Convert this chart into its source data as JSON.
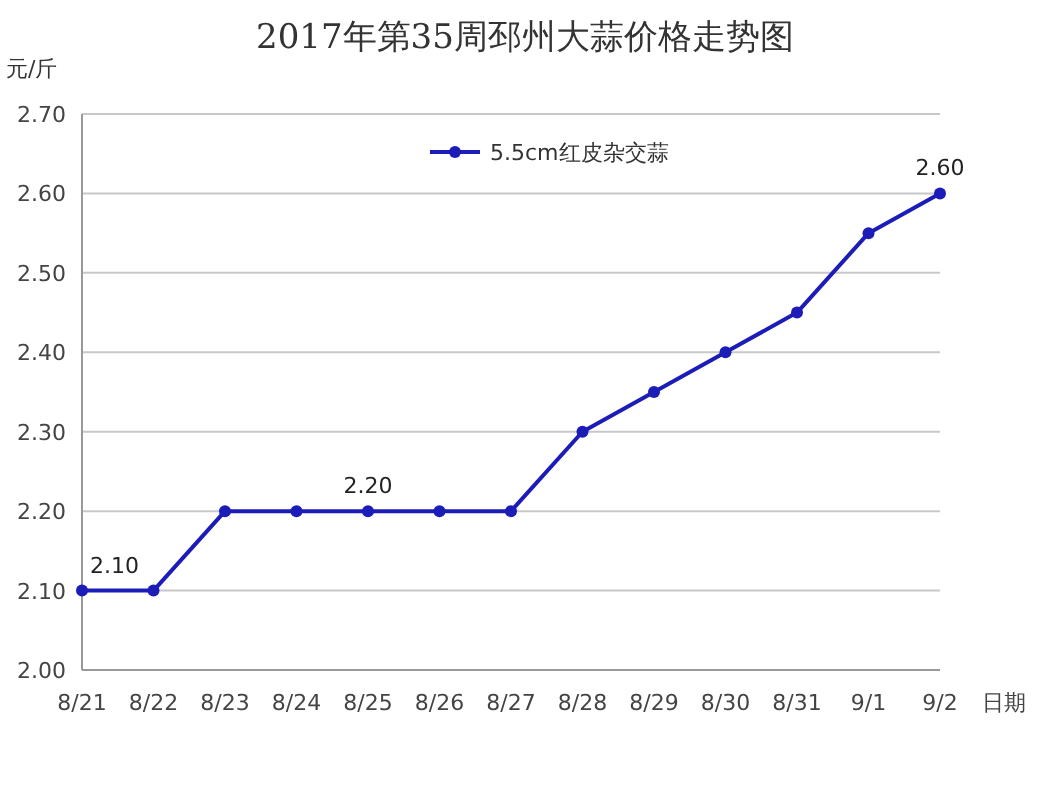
{
  "chart_data": {
    "type": "line",
    "title": "2017年第35周邳州大蒜价格走势图",
    "ylabel": "元/斤",
    "xlabel": "日期",
    "categories": [
      "8/21",
      "8/22",
      "8/23",
      "8/24",
      "8/25",
      "8/26",
      "8/27",
      "8/28",
      "8/29",
      "8/30",
      "8/31",
      "9/1",
      "9/2"
    ],
    "series": [
      {
        "name": "5.5cm红皮杂交蒜",
        "color": "#1c1cb8",
        "values": [
          2.1,
          2.1,
          2.2,
          2.2,
          2.2,
          2.2,
          2.2,
          2.3,
          2.35,
          2.4,
          2.45,
          2.55,
          2.6
        ],
        "value_labels": [
          "2.10",
          null,
          null,
          null,
          "2.20",
          null,
          null,
          null,
          null,
          null,
          null,
          null,
          "2.60"
        ]
      }
    ],
    "ylim": [
      2.0,
      2.7
    ],
    "yticks": [
      {
        "value": 2.0,
        "label": "2.00"
      },
      {
        "value": 2.1,
        "label": "2.10"
      },
      {
        "value": 2.2,
        "label": "2.20"
      },
      {
        "value": 2.3,
        "label": "2.30"
      },
      {
        "value": 2.4,
        "label": "2.40"
      },
      {
        "value": 2.5,
        "label": "2.50"
      },
      {
        "value": 2.6,
        "label": "2.60"
      },
      {
        "value": 2.7,
        "label": "2.70"
      }
    ],
    "grid": "y",
    "legend": "top",
    "marker": "circle",
    "line_style": "solid"
  }
}
